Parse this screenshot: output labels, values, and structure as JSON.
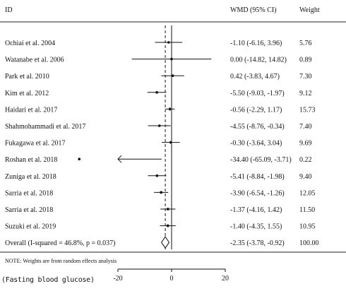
{
  "chart_data": {
    "type": "forest",
    "columns": {
      "study": "ID",
      "effect": "WMD (95% CI)",
      "weight": "Weight"
    },
    "studies": [
      {
        "label": "Ochiai et al. 2004",
        "wmd": -1.1,
        "ci": [
          -6.16,
          3.96
        ],
        "ci_text": "-1.10 (-6.16, 3.96)",
        "weight": "5.76"
      },
      {
        "label": "Watanabe et al. 2006",
        "wmd": 0.0,
        "ci": [
          -14.82,
          14.82
        ],
        "ci_text": "0.00 (-14.82, 14.82)",
        "weight": "0.89"
      },
      {
        "label": "Park et al. 2010",
        "wmd": 0.42,
        "ci": [
          -3.83,
          4.67
        ],
        "ci_text": "0.42 (-3.83, 4.67)",
        "weight": "7.30"
      },
      {
        "label": "Kim et al. 2012",
        "wmd": -5.5,
        "ci": [
          -9.03,
          -1.97
        ],
        "ci_text": "-5.50 (-9.03, -1.97)",
        "weight": "9.12"
      },
      {
        "label": "Haidari et al. 2017",
        "wmd": -0.56,
        "ci": [
          -2.29,
          1.17
        ],
        "ci_text": "-0.56 (-2.29, 1.17)",
        "weight": "15.73"
      },
      {
        "label": "Shahmohammadi et al. 2017",
        "wmd": -4.55,
        "ci": [
          -8.76,
          -0.34
        ],
        "ci_text": "-4.55 (-8.76, -0.34)",
        "weight": "7.40"
      },
      {
        "label": "Fukagawa et al. 2017",
        "wmd": -0.3,
        "ci": [
          -3.64,
          3.04
        ],
        "ci_text": "-0.30 (-3.64, 3.04)",
        "weight": "9.69"
      },
      {
        "label": "Roshan et al. 2018",
        "wmd": -34.4,
        "ci": [
          -65.09,
          -3.71
        ],
        "ci_text": "-34.40 (-65.09, -3.71)",
        "weight": "0.22",
        "arrow_left": true
      },
      {
        "label": "Zuniga et al. 2018",
        "wmd": -5.41,
        "ci": [
          -8.84,
          -1.98
        ],
        "ci_text": "-5.41 (-8.84, -1.98)",
        "weight": "9.40"
      },
      {
        "label": "Sarria et al. 2018",
        "wmd": -3.9,
        "ci": [
          -6.54,
          -1.26
        ],
        "ci_text": "-3.90 (-6.54, -1.26)",
        "weight": "12.05"
      },
      {
        "label": "Sarria et al. 2018",
        "wmd": -1.37,
        "ci": [
          -4.16,
          1.42
        ],
        "ci_text": "-1.37 (-4.16, 1.42)",
        "weight": "11.50"
      },
      {
        "label": "Suzuki et al. 2019",
        "wmd": -1.4,
        "ci": [
          -4.35,
          1.55
        ],
        "ci_text": "-1.40 (-4.35, 1.55)",
        "weight": "10.95"
      }
    ],
    "overall": {
      "label": "Overall  (I-squared = 46.8%, p = 0.037)",
      "wmd": -2.35,
      "ci": [
        -3.78,
        -0.92
      ],
      "ci_text": "-2.35 (-3.78, -0.92)",
      "weight": "100.00"
    },
    "note": "NOTE: Weights are from random effects analysis",
    "x_ticks": [
      "-20",
      "0",
      "20"
    ],
    "caption": "(Fasting blood glucose)"
  }
}
